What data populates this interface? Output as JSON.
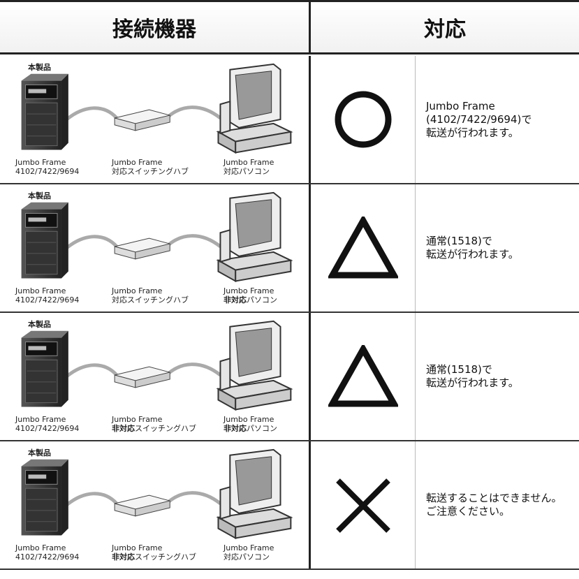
{
  "header": {
    "device": "接続機器",
    "support": "対応"
  },
  "rows": [
    {
      "product": "本製品",
      "nas": [
        "Jumbo Frame",
        "4102/7422/9694"
      ],
      "switch": {
        "title": "Jumbo Frame",
        "support": "対応",
        "device": "スイッチングハブ"
      },
      "pc": {
        "title": "Jumbo Frame",
        "support": "対応",
        "device": "パソコン"
      },
      "note": [
        "Jumbo Frame",
        "(4102/7422/9694)で",
        "転送が行われます。"
      ]
    },
    {
      "product": "本製品",
      "nas": [
        "Jumbo Frame",
        "4102/7422/9694"
      ],
      "switch": {
        "title": "Jumbo Frame",
        "support": "対応",
        "device": "スイッチングハブ"
      },
      "pc": {
        "title": "Jumbo Frame",
        "support": "非対応",
        "device": "パソコン"
      },
      "note": [
        "通常(1518)で",
        "転送が行われます。"
      ]
    },
    {
      "product": "本製品",
      "nas": [
        "Jumbo Frame",
        "4102/7422/9694"
      ],
      "switch": {
        "title": "Jumbo Frame",
        "support": "非対応",
        "device": "スイッチングハブ"
      },
      "pc": {
        "title": "Jumbo Frame",
        "support": "非対応",
        "device": "パソコン"
      },
      "note": [
        "通常(1518)で",
        "転送が行われます。"
      ]
    },
    {
      "product": "本製品",
      "nas": [
        "Jumbo Frame",
        "4102/7422/9694"
      ],
      "switch": {
        "title": "Jumbo Frame",
        "support": "非対応",
        "device": "スイッチングハブ"
      },
      "pc": {
        "title": "Jumbo Frame",
        "support": "対応",
        "device": "パソコン"
      },
      "note": [
        "転送することはできません。",
        "ご注意ください。"
      ]
    }
  ]
}
